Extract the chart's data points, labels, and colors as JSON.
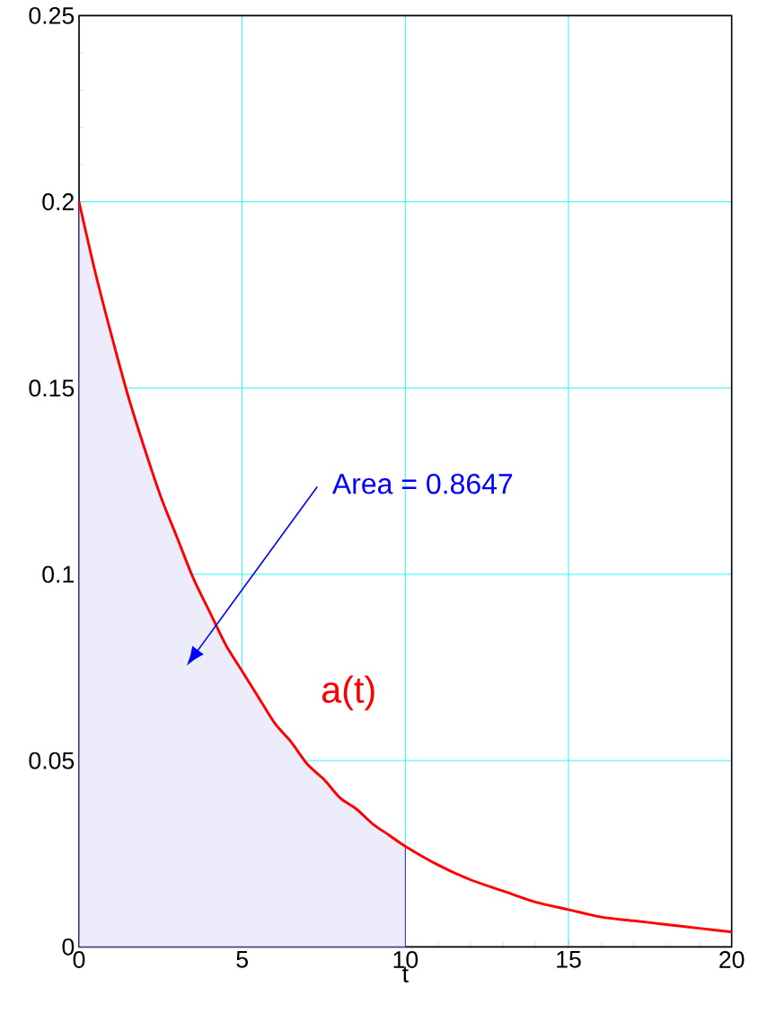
{
  "chart_data": {
    "type": "line",
    "xlabel": "t",
    "xlim": [
      0,
      20
    ],
    "ylim": [
      0,
      0.25
    ],
    "xticks": [
      0,
      5,
      10,
      15,
      20
    ],
    "yticks": [
      0,
      0.05,
      0.1,
      0.15,
      0.2,
      0.25
    ],
    "grid": true,
    "series": [
      {
        "type": "area",
        "color": "#ececfa",
        "x": [
          0,
          0.5,
          1,
          1.5,
          2,
          2.5,
          3,
          3.5,
          4,
          4.5,
          5,
          5.5,
          6,
          6.5,
          7,
          7.5,
          8,
          8.5,
          9,
          9.5,
          10
        ],
        "values": [
          0.2,
          0.181,
          0.164,
          0.148,
          0.134,
          0.121,
          0.11,
          0.099,
          0.09,
          0.081,
          0.074,
          0.067,
          0.06,
          0.055,
          0.049,
          0.045,
          0.04,
          0.037,
          0.033,
          0.03,
          0.027
        ]
      },
      {
        "name": "a(t)",
        "color": "#ff0000",
        "x": [
          0,
          0.5,
          1,
          1.5,
          2,
          2.5,
          3,
          3.5,
          4,
          4.5,
          5,
          5.5,
          6,
          6.5,
          7,
          7.5,
          8,
          8.5,
          9,
          9.5,
          10,
          11,
          12,
          13,
          14,
          15,
          16,
          17,
          18,
          19,
          20
        ],
        "values": [
          0.2,
          0.181,
          0.164,
          0.148,
          0.134,
          0.121,
          0.11,
          0.099,
          0.09,
          0.081,
          0.074,
          0.067,
          0.06,
          0.055,
          0.049,
          0.045,
          0.04,
          0.037,
          0.033,
          0.03,
          0.027,
          0.022,
          0.018,
          0.015,
          0.012,
          0.01,
          0.008,
          0.007,
          0.006,
          0.005,
          0.004
        ]
      }
    ],
    "annotations": [
      "Area = 0.8647"
    ]
  }
}
